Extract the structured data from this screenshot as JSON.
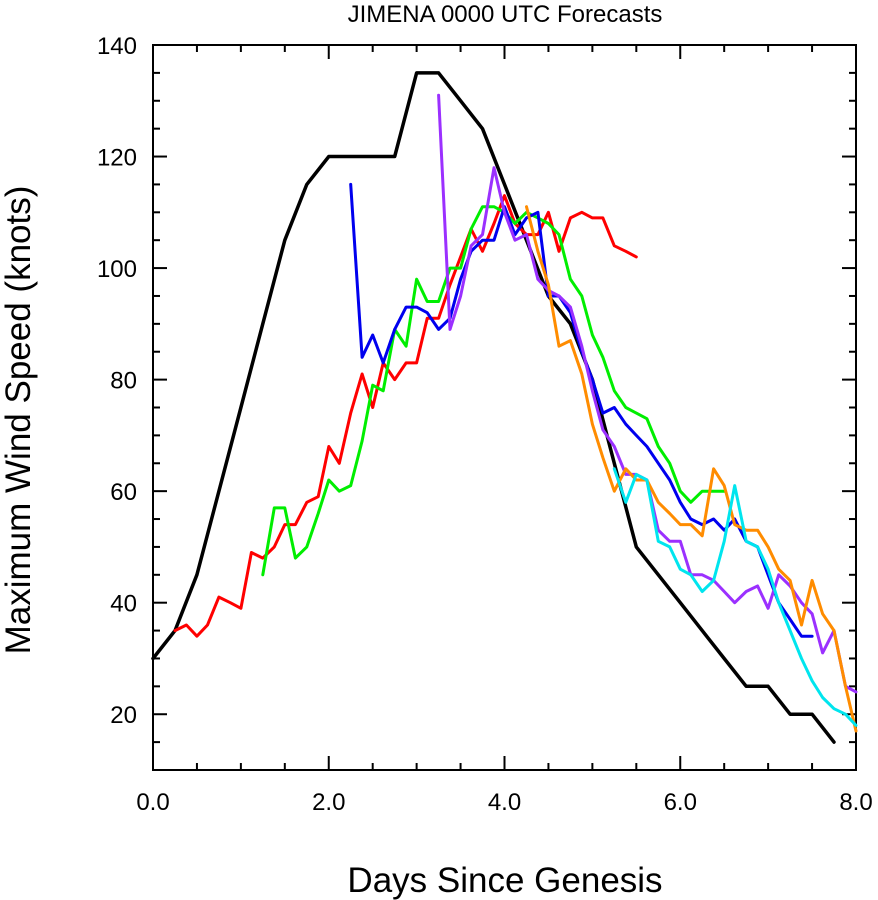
{
  "chart_data": {
    "type": "line",
    "title": "JIMENA 0000 UTC Forecasts",
    "xlabel": "Days Since Genesis",
    "ylabel": "Maximum Wind Speed (knots)",
    "xlim": [
      0,
      8
    ],
    "ylim": [
      10,
      140
    ],
    "x_ticks": [
      "0.0",
      "2.0",
      "4.0",
      "6.0",
      "8.0"
    ],
    "y_ticks": [
      "20",
      "40",
      "60",
      "80",
      "100",
      "120",
      "140"
    ],
    "grid": false,
    "legend": "none",
    "series": [
      {
        "color": "#000000",
        "role": "best-track",
        "points": [
          [
            0,
            30
          ],
          [
            0.25,
            35
          ],
          [
            0.5,
            45
          ],
          [
            0.75,
            60
          ],
          [
            1.0,
            75
          ],
          [
            1.25,
            90
          ],
          [
            1.5,
            105
          ],
          [
            1.75,
            115
          ],
          [
            2.0,
            120
          ],
          [
            2.25,
            120
          ],
          [
            2.5,
            120
          ],
          [
            2.75,
            120
          ],
          [
            3.0,
            135
          ],
          [
            3.25,
            135
          ],
          [
            3.5,
            130
          ],
          [
            3.75,
            125
          ],
          [
            4.0,
            115
          ],
          [
            4.25,
            105
          ],
          [
            4.5,
            95
          ],
          [
            4.75,
            90
          ],
          [
            5.0,
            80
          ],
          [
            5.25,
            65
          ],
          [
            5.5,
            50
          ],
          [
            5.75,
            45
          ],
          [
            6.0,
            40
          ],
          [
            6.25,
            35
          ],
          [
            6.5,
            30
          ],
          [
            6.75,
            25
          ],
          [
            7.0,
            25
          ],
          [
            7.25,
            20
          ],
          [
            7.5,
            20
          ],
          [
            7.75,
            15
          ]
        ]
      },
      {
        "color": "#ff0000",
        "points": [
          [
            0.25,
            35
          ],
          [
            0.38,
            36
          ],
          [
            0.5,
            34
          ],
          [
            0.62,
            36
          ],
          [
            0.75,
            41
          ],
          [
            0.88,
            40
          ],
          [
            1.0,
            39
          ],
          [
            1.12,
            49
          ],
          [
            1.25,
            48
          ],
          [
            1.38,
            50
          ],
          [
            1.5,
            54
          ],
          [
            1.62,
            54
          ],
          [
            1.75,
            58
          ],
          [
            1.88,
            59
          ],
          [
            2.0,
            68
          ],
          [
            2.12,
            65
          ],
          [
            2.25,
            74
          ],
          [
            2.38,
            81
          ],
          [
            2.5,
            75
          ],
          [
            2.62,
            83
          ],
          [
            2.75,
            80
          ],
          [
            2.88,
            83
          ],
          [
            3.0,
            83
          ],
          [
            3.12,
            91
          ],
          [
            3.25,
            91
          ],
          [
            3.38,
            97
          ],
          [
            3.5,
            102
          ],
          [
            3.62,
            107
          ],
          [
            3.75,
            103
          ],
          [
            3.88,
            108
          ],
          [
            4.0,
            113
          ],
          [
            4.12,
            108
          ],
          [
            4.25,
            106
          ],
          [
            4.38,
            106
          ],
          [
            4.5,
            110
          ],
          [
            4.62,
            103
          ],
          [
            4.75,
            109
          ],
          [
            4.88,
            110
          ],
          [
            5.0,
            109
          ],
          [
            5.12,
            109
          ],
          [
            5.25,
            104
          ],
          [
            5.38,
            103
          ],
          [
            5.5,
            102
          ]
        ]
      },
      {
        "color": "#00ee00",
        "points": [
          [
            1.25,
            45
          ],
          [
            1.38,
            57
          ],
          [
            1.5,
            57
          ],
          [
            1.62,
            48
          ],
          [
            1.75,
            50
          ],
          [
            1.88,
            56
          ],
          [
            2.0,
            62
          ],
          [
            2.12,
            60
          ],
          [
            2.25,
            61
          ],
          [
            2.38,
            69
          ],
          [
            2.5,
            79
          ],
          [
            2.62,
            78
          ],
          [
            2.75,
            89
          ],
          [
            2.88,
            86
          ],
          [
            3.0,
            98
          ],
          [
            3.12,
            94
          ],
          [
            3.25,
            94
          ],
          [
            3.38,
            100
          ],
          [
            3.5,
            100
          ],
          [
            3.62,
            107
          ],
          [
            3.75,
            111
          ],
          [
            3.88,
            111
          ],
          [
            4.0,
            110
          ],
          [
            4.12,
            108
          ],
          [
            4.25,
            110
          ],
          [
            4.38,
            109
          ],
          [
            4.5,
            108
          ],
          [
            4.62,
            106
          ],
          [
            4.75,
            98
          ],
          [
            4.88,
            95
          ],
          [
            5.0,
            88
          ],
          [
            5.12,
            84
          ],
          [
            5.25,
            78
          ],
          [
            5.38,
            75
          ],
          [
            5.5,
            74
          ],
          [
            5.62,
            73
          ],
          [
            5.75,
            68
          ],
          [
            5.88,
            65
          ],
          [
            6.0,
            60
          ],
          [
            6.12,
            58
          ],
          [
            6.25,
            60
          ],
          [
            6.38,
            60
          ],
          [
            6.5,
            60
          ]
        ]
      },
      {
        "color": "#0000ee",
        "points": [
          [
            2.25,
            115
          ],
          [
            2.38,
            84
          ],
          [
            2.5,
            88
          ],
          [
            2.62,
            83
          ],
          [
            2.75,
            89
          ],
          [
            2.88,
            93
          ],
          [
            3.0,
            93
          ],
          [
            3.12,
            92
          ],
          [
            3.25,
            89
          ],
          [
            3.38,
            91
          ],
          [
            3.5,
            98
          ],
          [
            3.62,
            103
          ],
          [
            3.75,
            105
          ],
          [
            3.88,
            105
          ],
          [
            4.0,
            111
          ],
          [
            4.12,
            106
          ],
          [
            4.25,
            109
          ],
          [
            4.38,
            110
          ],
          [
            4.5,
            95
          ],
          [
            4.62,
            95
          ],
          [
            4.75,
            92
          ],
          [
            4.88,
            85
          ],
          [
            5.0,
            80
          ],
          [
            5.12,
            74
          ],
          [
            5.25,
            75
          ],
          [
            5.38,
            72
          ],
          [
            5.5,
            70
          ],
          [
            5.62,
            68
          ],
          [
            5.75,
            65
          ],
          [
            5.88,
            62
          ],
          [
            6.0,
            58
          ],
          [
            6.12,
            55
          ],
          [
            6.25,
            54
          ],
          [
            6.38,
            55
          ],
          [
            6.5,
            53
          ],
          [
            6.62,
            55
          ],
          [
            6.75,
            51
          ],
          [
            6.88,
            50
          ],
          [
            7.0,
            45
          ],
          [
            7.12,
            40
          ],
          [
            7.25,
            37
          ],
          [
            7.38,
            34
          ],
          [
            7.5,
            34
          ]
        ]
      },
      {
        "color": "#9b30ff",
        "points": [
          [
            3.25,
            131
          ],
          [
            3.38,
            89
          ],
          [
            3.5,
            95
          ],
          [
            3.62,
            104
          ],
          [
            3.75,
            106
          ],
          [
            3.88,
            118
          ],
          [
            4.0,
            110
          ],
          [
            4.12,
            105
          ],
          [
            4.25,
            106
          ],
          [
            4.38,
            98
          ],
          [
            4.5,
            96
          ],
          [
            4.62,
            95
          ],
          [
            4.75,
            93
          ],
          [
            4.88,
            86
          ],
          [
            5.0,
            78
          ],
          [
            5.12,
            71
          ],
          [
            5.25,
            68
          ],
          [
            5.38,
            63
          ],
          [
            5.5,
            63
          ],
          [
            5.62,
            62
          ],
          [
            5.75,
            53
          ],
          [
            5.88,
            51
          ],
          [
            6.0,
            51
          ],
          [
            6.12,
            45
          ],
          [
            6.25,
            45
          ],
          [
            6.38,
            44
          ],
          [
            6.5,
            42
          ],
          [
            6.62,
            40
          ],
          [
            6.75,
            42
          ],
          [
            6.88,
            43
          ],
          [
            7.0,
            39
          ],
          [
            7.12,
            45
          ],
          [
            7.25,
            43
          ],
          [
            7.38,
            40
          ],
          [
            7.5,
            38
          ],
          [
            7.62,
            31
          ],
          [
            7.75,
            35
          ],
          [
            7.88,
            25
          ],
          [
            8.0,
            24
          ]
        ]
      },
      {
        "color": "#ff8c00",
        "points": [
          [
            4.25,
            111
          ],
          [
            4.38,
            103
          ],
          [
            4.5,
            97
          ],
          [
            4.62,
            86
          ],
          [
            4.75,
            87
          ],
          [
            4.88,
            81
          ],
          [
            5.0,
            72
          ],
          [
            5.12,
            66
          ],
          [
            5.25,
            60
          ],
          [
            5.38,
            64
          ],
          [
            5.5,
            62
          ],
          [
            5.62,
            62
          ],
          [
            5.75,
            58
          ],
          [
            5.88,
            56
          ],
          [
            6.0,
            54
          ],
          [
            6.12,
            54
          ],
          [
            6.25,
            52
          ],
          [
            6.38,
            64
          ],
          [
            6.5,
            61
          ],
          [
            6.62,
            54
          ],
          [
            6.75,
            53
          ],
          [
            6.88,
            53
          ],
          [
            7.0,
            50
          ],
          [
            7.12,
            46
          ],
          [
            7.25,
            44
          ],
          [
            7.38,
            36
          ],
          [
            7.5,
            44
          ],
          [
            7.62,
            38
          ],
          [
            7.75,
            35
          ],
          [
            7.88,
            25
          ],
          [
            8.0,
            17
          ]
        ]
      },
      {
        "color": "#00e5ee",
        "points": [
          [
            5.25,
            64
          ],
          [
            5.38,
            58
          ],
          [
            5.5,
            63
          ],
          [
            5.62,
            62
          ],
          [
            5.75,
            51
          ],
          [
            5.88,
            50
          ],
          [
            6.0,
            46
          ],
          [
            6.12,
            45
          ],
          [
            6.25,
            42
          ],
          [
            6.38,
            44
          ],
          [
            6.5,
            51
          ],
          [
            6.62,
            61
          ],
          [
            6.75,
            51
          ],
          [
            6.88,
            50
          ],
          [
            7.0,
            46
          ],
          [
            7.12,
            40
          ],
          [
            7.25,
            35
          ],
          [
            7.38,
            30
          ],
          [
            7.5,
            26
          ],
          [
            7.62,
            23
          ],
          [
            7.75,
            21
          ],
          [
            7.88,
            20
          ],
          [
            8.0,
            18
          ]
        ]
      }
    ]
  }
}
